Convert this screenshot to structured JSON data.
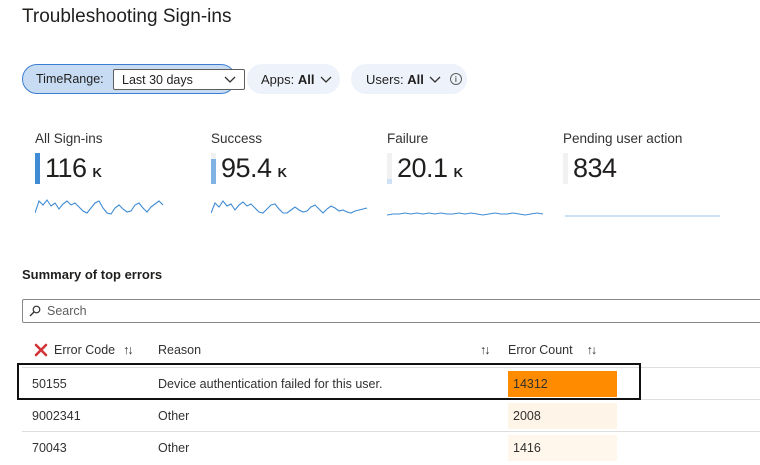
{
  "page": {
    "title": "Troubleshooting Sign-ins"
  },
  "filters": {
    "time_range": {
      "label": "TimeRange:",
      "value": "Last 30 days"
    },
    "apps": {
      "label": "Apps:",
      "value": "All"
    },
    "users": {
      "label": "Users:",
      "value": "All"
    }
  },
  "metrics": [
    {
      "label": "All Sign-ins",
      "value": "116",
      "unit": "K",
      "bar_fraction": 1.0,
      "bar_color": "#3f8bd4"
    },
    {
      "label": "Success",
      "value": "95.4",
      "unit": "K",
      "bar_fraction": 0.82,
      "bar_color": "#7fb2e5"
    },
    {
      "label": "Failure",
      "value": "20.1",
      "unit": "K",
      "bar_fraction": 0.17,
      "bar_color": "#cfe2f5"
    },
    {
      "label": "Pending user action",
      "value": "834",
      "unit": "",
      "bar_fraction": 0.0,
      "bar_color": "#e8f1fa"
    }
  ],
  "summary": {
    "title": "Summary of top errors",
    "search_placeholder": "Search",
    "columns": {
      "code": "Error Code",
      "reason": "Reason",
      "count": "Error Count"
    },
    "rows": [
      {
        "code": "50155",
        "reason": "Device authentication failed for this user.",
        "count": "14312",
        "color": "#ff8c00"
      },
      {
        "code": "9002341",
        "reason": "Other",
        "count": "2008",
        "color": "#fff4e8"
      },
      {
        "code": "70043",
        "reason": "Other",
        "count": "1416",
        "color": "#fff6ec"
      }
    ]
  },
  "colors": {
    "accent": "#3b7ed1",
    "spark": "#3f8bd4"
  }
}
